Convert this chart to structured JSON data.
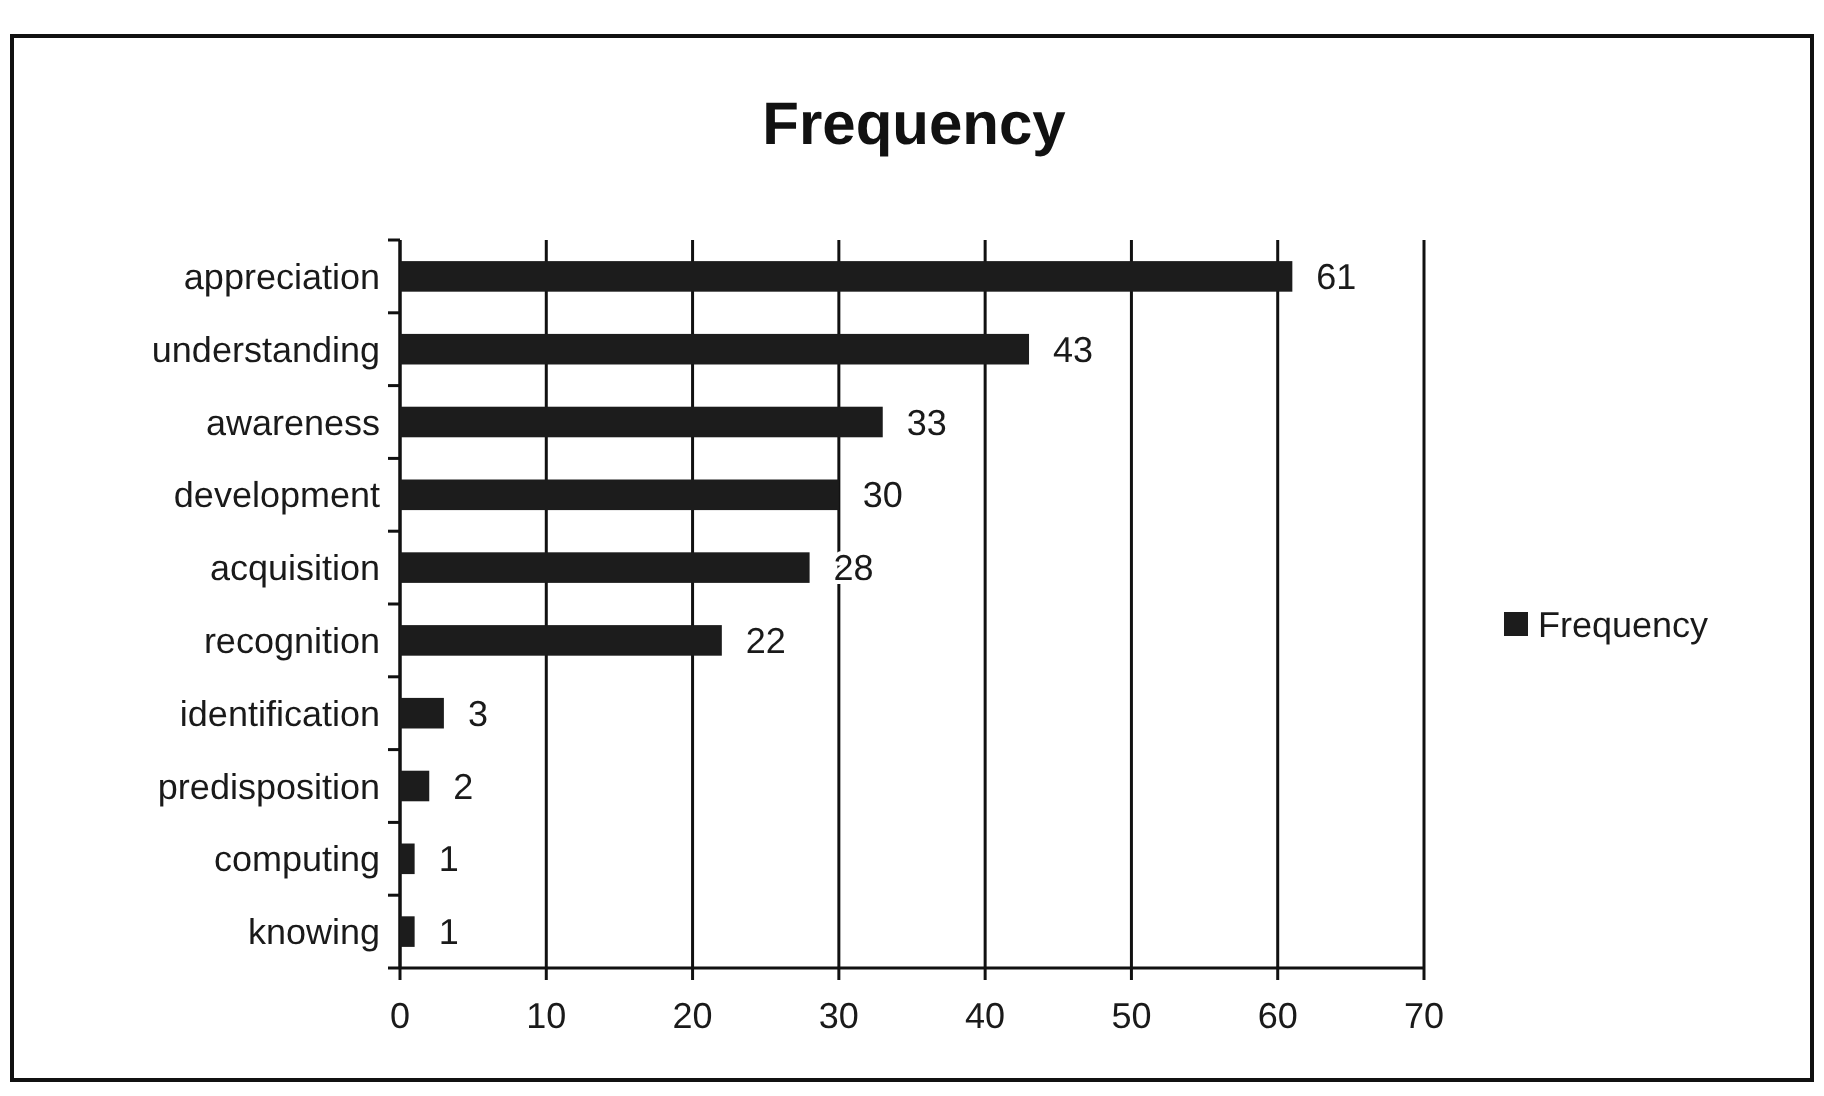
{
  "chart_data": {
    "type": "bar",
    "orientation": "horizontal",
    "title": "Frequency",
    "categories": [
      "appreciation",
      "understanding",
      "awareness",
      "development",
      "acquisition",
      "recognition",
      "identification",
      "predisposition",
      "computing",
      "knowing"
    ],
    "series": [
      {
        "name": "Frequency",
        "color": "#1c1c1c",
        "values": [
          61,
          43,
          33,
          30,
          28,
          22,
          3,
          2,
          1,
          1
        ]
      }
    ],
    "xlim": [
      0,
      70
    ],
    "xticks": [
      0,
      10,
      20,
      30,
      40,
      50,
      60,
      70
    ],
    "grid": "x",
    "legend": "right",
    "data_labels": true
  }
}
